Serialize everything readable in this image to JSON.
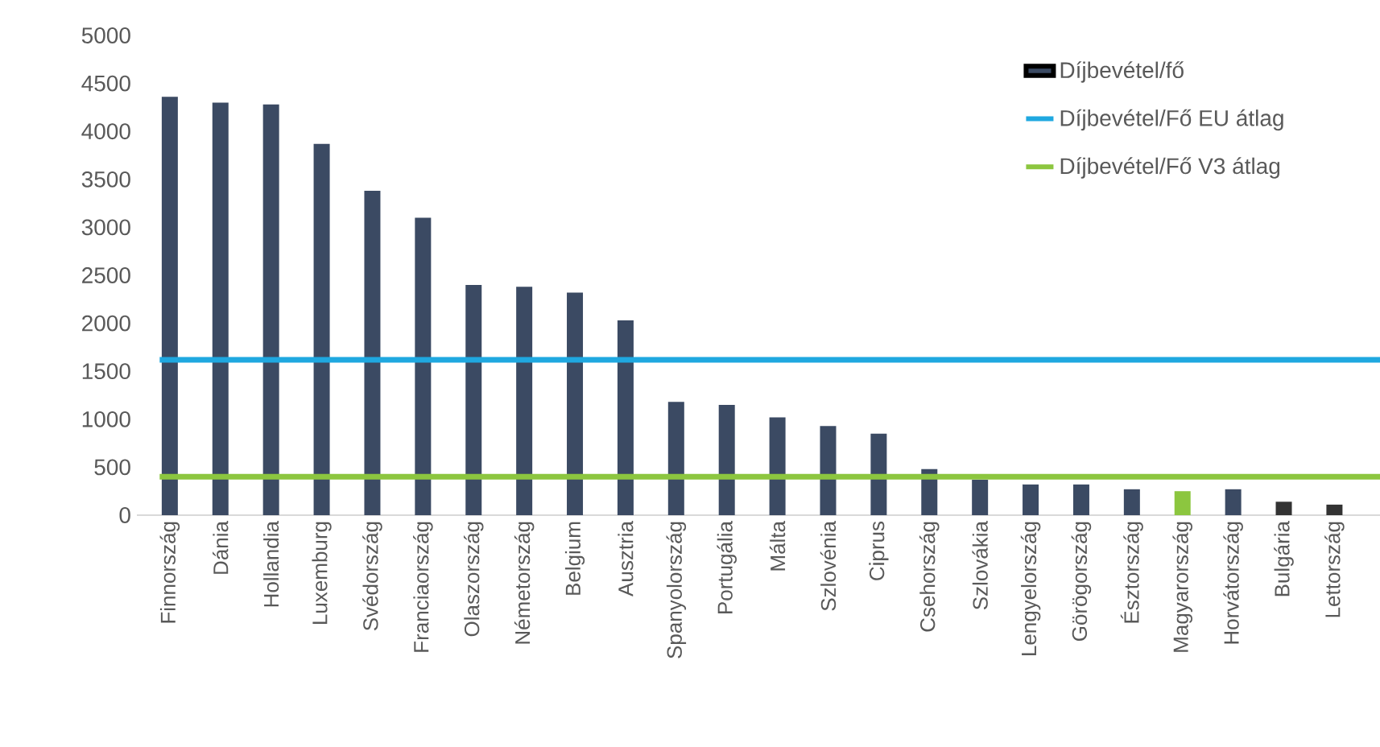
{
  "chart_data": {
    "type": "bar",
    "categories": [
      "Finnország",
      "Dánia",
      "Hollandia",
      "Luxemburg",
      "Svédország",
      "Franciaország",
      "Olaszország",
      "Németország",
      "Belgium",
      "Ausztria",
      "Spanyolország",
      "Portugália",
      "Málta",
      "Szlovénia",
      "Ciprus",
      "Csehország",
      "Szlovákia",
      "Lengyelország",
      "Görögország",
      "Észtország",
      "Magyarország",
      "Horvátország",
      "Bulgária",
      "Lettország"
    ],
    "series": [
      {
        "name": "Díjbevétel/fő",
        "color": "#3b4a63",
        "values": [
          4360,
          4300,
          4280,
          3870,
          3380,
          3100,
          2400,
          2380,
          2320,
          2030,
          1180,
          1150,
          1020,
          930,
          850,
          480,
          370,
          320,
          320,
          270,
          250,
          270,
          140,
          110
        ],
        "colors": [
          "#3b4a63",
          "#3b4a63",
          "#3b4a63",
          "#3b4a63",
          "#3b4a63",
          "#3b4a63",
          "#3b4a63",
          "#3b4a63",
          "#3b4a63",
          "#3b4a63",
          "#3b4a63",
          "#3b4a63",
          "#3b4a63",
          "#3b4a63",
          "#3b4a63",
          "#3b4a63",
          "#3b4a63",
          "#3b4a63",
          "#3b4a63",
          "#3b4a63",
          "#8cc63f",
          "#3b4a63",
          "#333333",
          "#333333"
        ]
      }
    ],
    "ref_lines": [
      {
        "axis": "y",
        "value": 1620,
        "label": "Díjbevétel/Fő EU átlag",
        "color": "#1fa8e0"
      },
      {
        "axis": "y",
        "value": 400,
        "label": "Díjbevétel/Fő V3 átlag",
        "color": "#8cc63f"
      }
    ],
    "ylim": [
      0,
      5000
    ],
    "yticks": [
      0,
      500,
      1000,
      1500,
      2000,
      2500,
      3000,
      3500,
      4000,
      4500,
      5000
    ],
    "grid": false,
    "legend": "top right"
  }
}
